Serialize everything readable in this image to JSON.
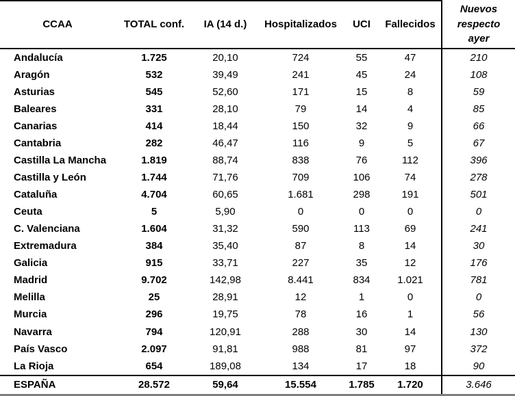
{
  "table": {
    "columns": [
      "CCAA",
      "TOTAL conf.",
      "IA (14 d.)",
      "Hospitalizados",
      "UCI",
      "Fallecidos",
      "Nuevos respecto ayer"
    ],
    "row_keys": [
      "ccaa",
      "total",
      "ia",
      "hosp",
      "uci",
      "fallecidos",
      "nuevos"
    ],
    "rows": [
      {
        "ccaa": "Andalucía",
        "total": "1.725",
        "ia": "20,10",
        "hosp": "724",
        "uci": "55",
        "fallecidos": "47",
        "nuevos": "210"
      },
      {
        "ccaa": "Aragón",
        "total": "532",
        "ia": "39,49",
        "hosp": "241",
        "uci": "45",
        "fallecidos": "24",
        "nuevos": "108"
      },
      {
        "ccaa": "Asturias",
        "total": "545",
        "ia": "52,60",
        "hosp": "171",
        "uci": "15",
        "fallecidos": "8",
        "nuevos": "59"
      },
      {
        "ccaa": "Baleares",
        "total": "331",
        "ia": "28,10",
        "hosp": "79",
        "uci": "14",
        "fallecidos": "4",
        "nuevos": "85"
      },
      {
        "ccaa": "Canarias",
        "total": "414",
        "ia": "18,44",
        "hosp": "150",
        "uci": "32",
        "fallecidos": "9",
        "nuevos": "66"
      },
      {
        "ccaa": "Cantabria",
        "total": "282",
        "ia": "46,47",
        "hosp": "116",
        "uci": "9",
        "fallecidos": "5",
        "nuevos": "67"
      },
      {
        "ccaa": "Castilla La Mancha",
        "total": "1.819",
        "ia": "88,74",
        "hosp": "838",
        "uci": "76",
        "fallecidos": "112",
        "nuevos": "396"
      },
      {
        "ccaa": "Castilla y León",
        "total": "1.744",
        "ia": "71,76",
        "hosp": "709",
        "uci": "106",
        "fallecidos": "74",
        "nuevos": "278"
      },
      {
        "ccaa": "Cataluña",
        "total": "4.704",
        "ia": "60,65",
        "hosp": "1.681",
        "uci": "298",
        "fallecidos": "191",
        "nuevos": "501"
      },
      {
        "ccaa": "Ceuta",
        "total": "5",
        "ia": "5,90",
        "hosp": "0",
        "uci": "0",
        "fallecidos": "0",
        "nuevos": "0"
      },
      {
        "ccaa": "C. Valenciana",
        "total": "1.604",
        "ia": "31,32",
        "hosp": "590",
        "uci": "113",
        "fallecidos": "69",
        "nuevos": "241"
      },
      {
        "ccaa": "Extremadura",
        "total": "384",
        "ia": "35,40",
        "hosp": "87",
        "uci": "8",
        "fallecidos": "14",
        "nuevos": "30"
      },
      {
        "ccaa": "Galicia",
        "total": "915",
        "ia": "33,71",
        "hosp": "227",
        "uci": "35",
        "fallecidos": "12",
        "nuevos": "176"
      },
      {
        "ccaa": "Madrid",
        "total": "9.702",
        "ia": "142,98",
        "hosp": "8.441",
        "uci": "834",
        "fallecidos": "1.021",
        "nuevos": "781"
      },
      {
        "ccaa": "Melilla",
        "total": "25",
        "ia": "28,91",
        "hosp": "12",
        "uci": "1",
        "fallecidos": "0",
        "nuevos": "0"
      },
      {
        "ccaa": "Murcia",
        "total": "296",
        "ia": "19,75",
        "hosp": "78",
        "uci": "16",
        "fallecidos": "1",
        "nuevos": "56"
      },
      {
        "ccaa": "Navarra",
        "total": "794",
        "ia": "120,91",
        "hosp": "288",
        "uci": "30",
        "fallecidos": "14",
        "nuevos": "130"
      },
      {
        "ccaa": "País Vasco",
        "total": "2.097",
        "ia": "91,81",
        "hosp": "988",
        "uci": "81",
        "fallecidos": "97",
        "nuevos": "372"
      },
      {
        "ccaa": "La Rioja",
        "total": "654",
        "ia": "189,08",
        "hosp": "134",
        "uci": "17",
        "fallecidos": "18",
        "nuevos": "90"
      }
    ],
    "total_row": {
      "ccaa": "ESPAÑA",
      "total": "28.572",
      "ia": "59,64",
      "hosp": "15.554",
      "uci": "1.785",
      "fallecidos": "1.720",
      "nuevos": "3.646"
    }
  }
}
